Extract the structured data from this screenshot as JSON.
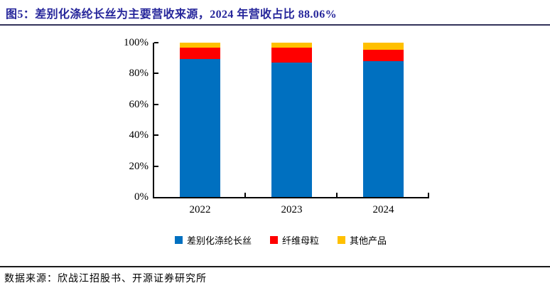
{
  "header": {
    "title": "图5：差别化涤纶长丝为主要营收来源，2024 年营收占比 88.06%",
    "title_color": "#26269B"
  },
  "footer": {
    "source": "数据来源：欣战江招股书、开源证券研究所"
  },
  "chart_data": {
    "type": "bar",
    "stacked": true,
    "title": "",
    "xlabel": "",
    "ylabel": "",
    "categories": [
      "2022",
      "2023",
      "2024"
    ],
    "series": [
      {
        "name": "差别化涤纶长丝",
        "color": "#0070C0",
        "values": [
          89.4,
          87.1,
          88.06
        ]
      },
      {
        "name": "纤维母粒",
        "color": "#FF0000",
        "values": [
          7.4,
          9.7,
          7.55
        ]
      },
      {
        "name": "其他产品",
        "color": "#FFC000",
        "values": [
          3.2,
          3.2,
          4.39
        ]
      }
    ],
    "ylim": [
      0,
      100
    ],
    "yticks": [
      "0%",
      "20%",
      "40%",
      "60%",
      "80%",
      "100%"
    ],
    "grid": false,
    "legend_position": "bottom"
  }
}
